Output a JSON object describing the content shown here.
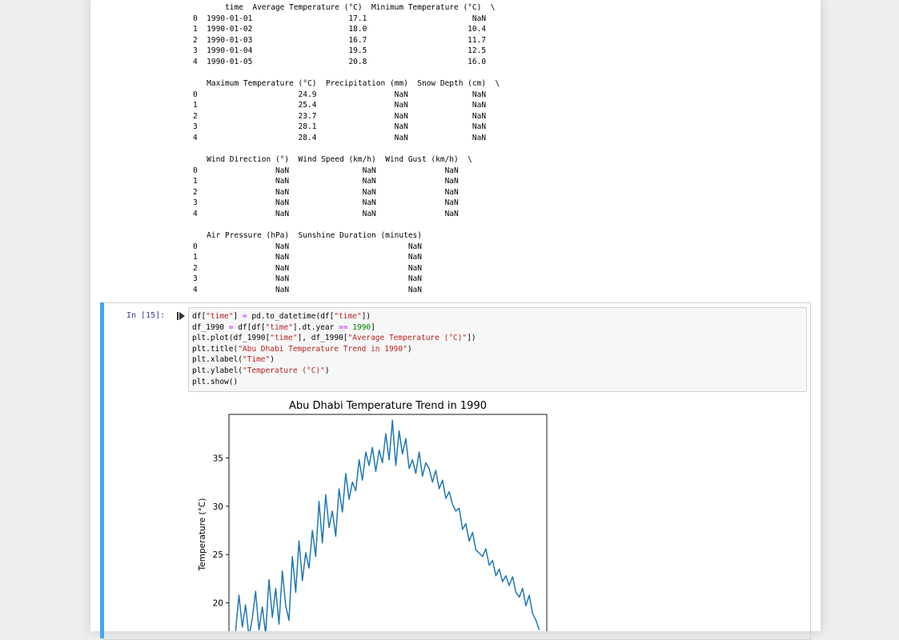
{
  "output_table": {
    "blocks": [
      {
        "header": "       time  Average Temperature (°C)  Minimum Temperature (°C)  \\",
        "rows": [
          "0  1990-01-01                     17.1                       NaN",
          "1  1990-01-02                     18.0                      10.4",
          "2  1990-01-03                     16.7                      11.7",
          "3  1990-01-04                     19.5                      12.5",
          "4  1990-01-05                     20.8                      16.0"
        ]
      },
      {
        "header": "   Maximum Temperature (°C)  Precipitation (mm)  Snow Depth (cm)  \\",
        "rows": [
          "0                      24.9                 NaN              NaN",
          "1                      25.4                 NaN              NaN",
          "2                      23.7                 NaN              NaN",
          "3                      28.1                 NaN              NaN",
          "4                      28.4                 NaN              NaN"
        ]
      },
      {
        "header": "   Wind Direction (°)  Wind Speed (km/h)  Wind Gust (km/h)  \\",
        "rows": [
          "0                 NaN                NaN               NaN",
          "1                 NaN                NaN               NaN",
          "2                 NaN                NaN               NaN",
          "3                 NaN                NaN               NaN",
          "4                 NaN                NaN               NaN"
        ]
      },
      {
        "header": "   Air Pressure (hPa)  Sunshine Duration (minutes)",
        "rows": [
          "0                 NaN                          NaN",
          "1                 NaN                          NaN",
          "2                 NaN                          NaN",
          "3                 NaN                          NaN",
          "4                 NaN                          NaN"
        ]
      }
    ]
  },
  "cell": {
    "prompt": "In [15]:",
    "code": [
      [
        {
          "t": "df[",
          "c": ""
        },
        {
          "t": "\"time\"",
          "c": "s"
        },
        {
          "t": "] ",
          "c": ""
        },
        {
          "t": "=",
          "c": "o"
        },
        {
          "t": " pd.to_datetime(df[",
          "c": ""
        },
        {
          "t": "\"time\"",
          "c": "s"
        },
        {
          "t": "])",
          "c": ""
        }
      ],
      [
        {
          "t": "df_1990 ",
          "c": ""
        },
        {
          "t": "=",
          "c": "o"
        },
        {
          "t": " df[df[",
          "c": ""
        },
        {
          "t": "\"time\"",
          "c": "s"
        },
        {
          "t": "].dt.year ",
          "c": ""
        },
        {
          "t": "==",
          "c": "o"
        },
        {
          "t": " ",
          "c": ""
        },
        {
          "t": "1990",
          "c": "n"
        },
        {
          "t": "]",
          "c": ""
        }
      ],
      [
        {
          "t": "plt.plot(df_1990[",
          "c": ""
        },
        {
          "t": "\"time\"",
          "c": "s"
        },
        {
          "t": "], df_1990[",
          "c": ""
        },
        {
          "t": "\"Average Temperature (°C)\"",
          "c": "s"
        },
        {
          "t": "])",
          "c": ""
        }
      ],
      [
        {
          "t": "plt.title(",
          "c": ""
        },
        {
          "t": "\"Abu Dhabi Temperature Trend in 1990\"",
          "c": "s"
        },
        {
          "t": ")",
          "c": ""
        }
      ],
      [
        {
          "t": "plt.xlabel(",
          "c": ""
        },
        {
          "t": "\"Time\"",
          "c": "s"
        },
        {
          "t": ")",
          "c": ""
        }
      ],
      [
        {
          "t": "plt.ylabel(",
          "c": ""
        },
        {
          "t": "\"Temperature (°C)\"",
          "c": "s"
        },
        {
          "t": ")",
          "c": ""
        }
      ],
      [
        {
          "t": "plt.show()",
          "c": ""
        }
      ]
    ]
  },
  "chart_data": {
    "type": "line",
    "title": "Abu Dhabi Temperature Trend in 1990",
    "xlabel": "",
    "ylabel": "Temperature (°C)",
    "yticks": [
      20,
      25,
      30,
      35
    ],
    "ylim": [
      15.5,
      39.5
    ],
    "xlim": [
      -8,
      373
    ],
    "line_color": "#1f77b4",
    "series": [
      {
        "x_unit": "day of 1990",
        "x": [
          0,
          4,
          8,
          12,
          16,
          20,
          24,
          28,
          32,
          36,
          40,
          44,
          48,
          52,
          56,
          60,
          64,
          68,
          72,
          76,
          80,
          84,
          88,
          92,
          96,
          100,
          104,
          108,
          112,
          116,
          120,
          124,
          128,
          132,
          136,
          140,
          144,
          148,
          152,
          156,
          160,
          164,
          168,
          172,
          176,
          180,
          184,
          188,
          192,
          196,
          200,
          204,
          208,
          212,
          216,
          220,
          224,
          228,
          232,
          236,
          240,
          244,
          248,
          252,
          256,
          260,
          264,
          268,
          272,
          276,
          280,
          284,
          288,
          296,
          300,
          304,
          308,
          312,
          316,
          320,
          324,
          328,
          332,
          336,
          340,
          344,
          348,
          352,
          356,
          360,
          364
        ],
        "y": [
          17.1,
          20.8,
          17.5,
          19.8,
          16.5,
          18.4,
          21.2,
          17.2,
          19.6,
          16.8,
          22.4,
          18.5,
          21.5,
          17.8,
          23.3,
          19.7,
          18.2,
          24.8,
          21.1,
          26.4,
          22.3,
          25.2,
          23.6,
          27.5,
          24.8,
          30.5,
          26.2,
          31.2,
          27.8,
          29.5,
          26.9,
          31.8,
          29.4,
          33.4,
          30.7,
          32.5,
          31.6,
          34.8,
          32.7,
          35.6,
          34.2,
          36.1,
          33.6,
          35.8,
          34.5,
          37.5,
          34.8,
          38.9,
          34.2,
          37.8,
          35.4,
          37.0,
          33.9,
          34.8,
          33.4,
          35.6,
          33.1,
          34.5,
          33.9,
          32.5,
          33.7,
          31.8,
          32.7,
          30.8,
          31.5,
          30.2,
          29.5,
          29.8,
          27.6,
          28.2,
          26.4,
          27.3,
          25.5,
          24.8,
          25.6,
          23.9,
          24.4,
          22.8,
          23.5,
          22.2,
          22.8,
          21.8,
          22.7,
          21.1,
          20.6,
          21.5,
          19.7,
          20.8,
          18.9,
          18.2,
          17.2
        ]
      }
    ]
  }
}
